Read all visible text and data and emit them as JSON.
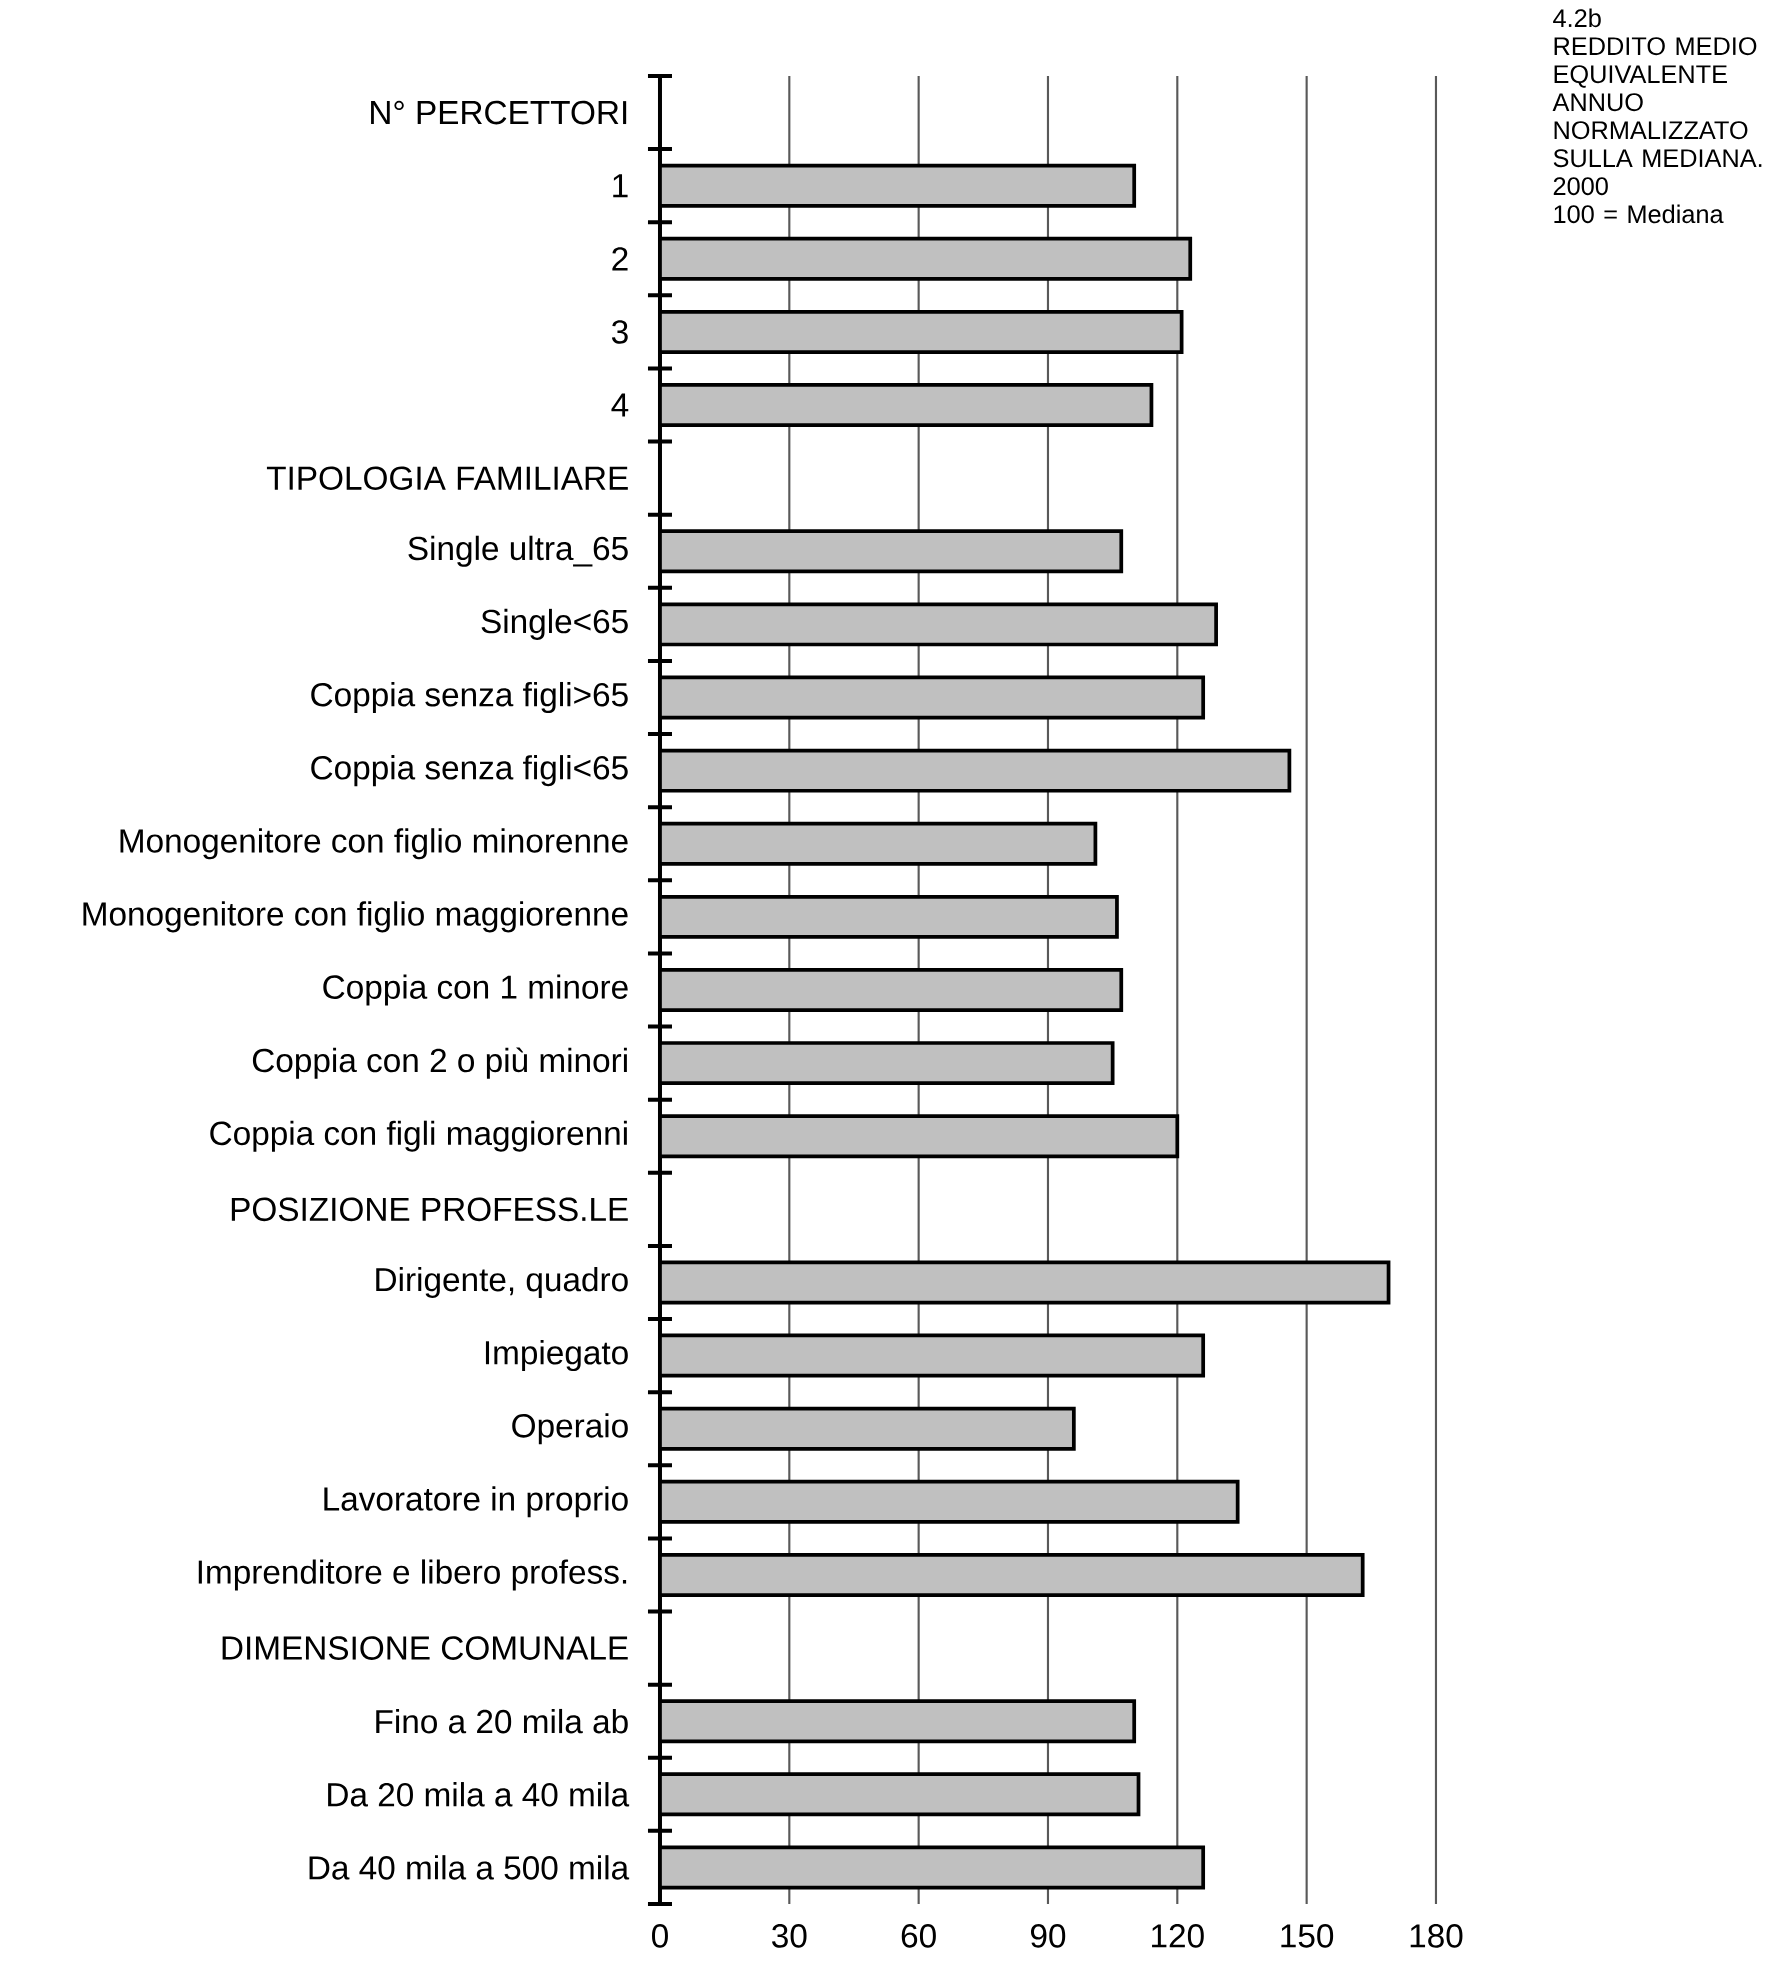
{
  "chart_data": {
    "type": "bar",
    "orientation": "horizontal",
    "title": "4.2b",
    "subtitle": "REDDITO MEDIO EQUIVALENTE ANNUO NORMALIZZATO SULLA MEDIANA. 2000",
    "annotations": [
      "100 = Mediana"
    ],
    "categories": [
      "N° PERCETTORI",
      "1",
      "2",
      "3",
      "4",
      "TIPOLOGIA FAMILIARE",
      "Single ultra_65",
      "Single<65",
      "Coppia senza figli>65",
      "Coppia senza figli<65",
      "Monogenitore con figlio minorenne",
      "Monogenitore con figlio maggiorenne",
      "Coppia con 1 minore",
      "Coppia con 2 o più minori",
      "Coppia con figli maggiorenni",
      "POSIZIONE PROFESS.LE",
      "Dirigente, quadro",
      "Impiegato",
      "Operaio",
      "Lavoratore in proprio",
      "Imprenditore e libero profess.",
      "DIMENSIONE COMUNALE",
      "Fino a 20 mila ab",
      "Da 20 mila a 40 mila",
      "Da 40 mila a 500 mila"
    ],
    "values": [
      null,
      110,
      123,
      121,
      114,
      null,
      107,
      129,
      126,
      146,
      101,
      106,
      107,
      105,
      120,
      null,
      169,
      126,
      96,
      134,
      163,
      null,
      110,
      111,
      126
    ],
    "color": "#c0c0c0",
    "xlim": [
      0,
      180
    ],
    "xticks": [
      0,
      30,
      60,
      90,
      120,
      150,
      180
    ],
    "grid": "x"
  }
}
